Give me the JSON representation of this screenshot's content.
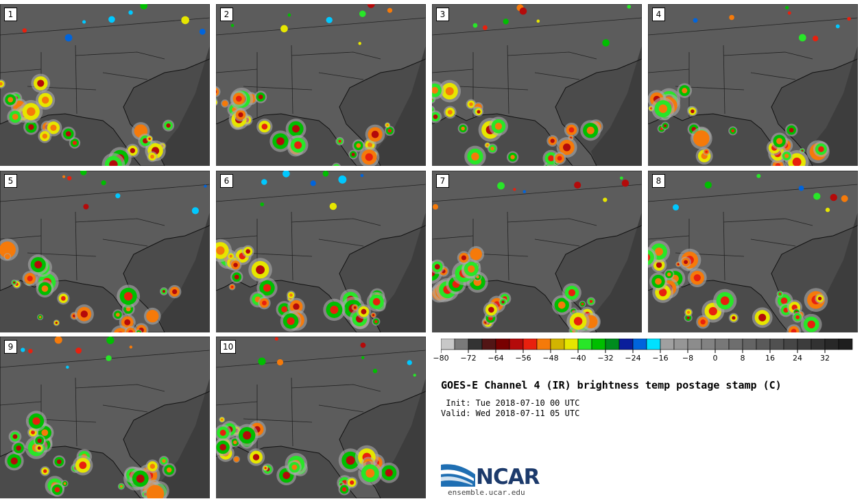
{
  "panels": [
    {
      "label": "1"
    },
    {
      "label": "2"
    },
    {
      "label": "3"
    },
    {
      "label": "4"
    },
    {
      "label": "5"
    },
    {
      "label": "6"
    },
    {
      "label": "7"
    },
    {
      "label": "8"
    },
    {
      "label": "9"
    },
    {
      "label": "10"
    }
  ],
  "colorbar": {
    "colors": [
      "#c8c8c8",
      "#7a7a7a",
      "#333333",
      "#521515",
      "#780000",
      "#b40a0a",
      "#e8200e",
      "#f57a0a",
      "#d2b400",
      "#e6e600",
      "#28e628",
      "#00be00",
      "#008c1e",
      "#0a1e9b",
      "#0064dc",
      "#00e1ff",
      "#a0a0a0",
      "#969696",
      "#8c8c8c",
      "#828282",
      "#787878",
      "#6e6e6e",
      "#646464",
      "#5a5a5a",
      "#505050",
      "#464646",
      "#3c3c3c",
      "#323232",
      "#282828",
      "#1e1e1e"
    ],
    "ticks": [
      "−80",
      "−72",
      "−64",
      "−56",
      "−48",
      "−40",
      "−32",
      "−24",
      "−16",
      "−8",
      "0",
      "8",
      "16",
      "24",
      "32"
    ]
  },
  "title": "GOES-E Channel 4 (IR) brightness temp postage stamp (C)",
  "init": " Init: Tue 2018-07-10 00 UTC",
  "valid": "Valid: Wed 2018-07-11 05 UTC",
  "logo": {
    "text": "NCAR",
    "url": "ensemble.ucar.edu"
  }
}
